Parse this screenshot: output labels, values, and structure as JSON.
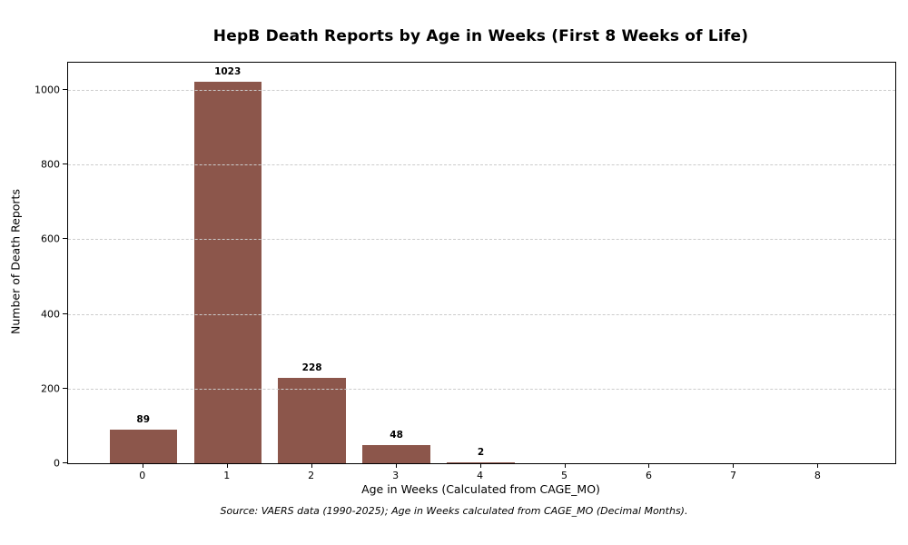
{
  "chart_data": {
    "type": "bar",
    "title": "HepB Death Reports by Age in Weeks (First 8 Weeks of Life)",
    "xlabel": "Age in Weeks (Calculated from CAGE_MO)",
    "ylabel": "Number of Death Reports",
    "categories": [
      "0",
      "1",
      "2",
      "3",
      "4",
      "5",
      "6",
      "7",
      "8"
    ],
    "values": [
      89,
      1023,
      228,
      48,
      2,
      0,
      0,
      0,
      0
    ],
    "bar_value_labels": [
      "89",
      "1023",
      "228",
      "48",
      "2",
      "",
      "",
      "",
      ""
    ],
    "yticks": [
      0,
      200,
      400,
      600,
      800,
      1000
    ],
    "ylim": [
      0,
      1073
    ],
    "xlim": [
      -0.89,
      8.91
    ],
    "bar_width_fraction": 0.8,
    "grid": "horizontal-dashed-over-bars",
    "legend_position": "none",
    "footer": "Source: VAERS data (1990-2025); Age in Weeks calculated from CAGE_MO (Decimal Months).",
    "colors": {
      "bar": "#8c564b",
      "grid": "#cccccc",
      "spine": "#000000",
      "text": "#000000"
    }
  }
}
